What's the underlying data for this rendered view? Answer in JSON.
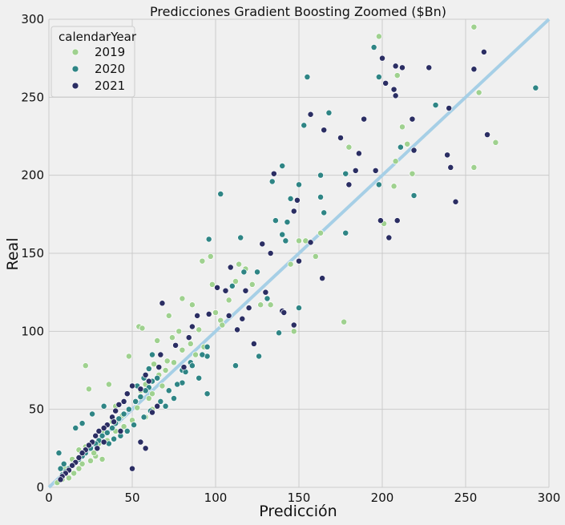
{
  "chart_data": {
    "type": "scatter",
    "title": "Predicciones Gradient Boosting Zoomed ($Bn)",
    "xlabel": "Predicción",
    "ylabel": "Real",
    "xlim": [
      0,
      300
    ],
    "ylim": [
      0,
      300
    ],
    "xticks": [
      0,
      50,
      100,
      150,
      200,
      250,
      300
    ],
    "yticks": [
      0,
      50,
      100,
      150,
      200,
      250,
      300
    ],
    "grid": true,
    "legend": {
      "title": "calendarYear",
      "placement": "top-left",
      "entries": [
        "2019",
        "2020",
        "2021"
      ]
    },
    "colors": {
      "background": "#f0f0f0",
      "grid": "#cbcbcb",
      "reference_line": "#a6cfe6",
      "2019": "#9fd18f",
      "2020": "#2f8585",
      "2021": "#2b2e63"
    },
    "reference_line": {
      "x": [
        0,
        300
      ],
      "y": [
        0,
        300
      ]
    },
    "series": [
      {
        "name": "2019",
        "points": [
          [
            198,
            289
          ],
          [
            255,
            295
          ],
          [
            258,
            253
          ],
          [
            268,
            221
          ],
          [
            255,
            205
          ],
          [
            212,
            231
          ],
          [
            215,
            220
          ],
          [
            209,
            264
          ],
          [
            207,
            193
          ],
          [
            201,
            169
          ],
          [
            180,
            218
          ],
          [
            177,
            106
          ],
          [
            208,
            209
          ],
          [
            232,
            245
          ],
          [
            218,
            201
          ],
          [
            163,
            163
          ],
          [
            150,
            158
          ],
          [
            160,
            148
          ],
          [
            147,
            100
          ],
          [
            154,
            158
          ],
          [
            145,
            143
          ],
          [
            122,
            130
          ],
          [
            118,
            140
          ],
          [
            114,
            143
          ],
          [
            103,
            107
          ],
          [
            104,
            104
          ],
          [
            127,
            117
          ],
          [
            133,
            117
          ],
          [
            98,
            130
          ],
          [
            90,
            101
          ],
          [
            86,
            117
          ],
          [
            92,
            145
          ],
          [
            80,
            121
          ],
          [
            72,
            110
          ],
          [
            78,
            100
          ],
          [
            74,
            96
          ],
          [
            97,
            148
          ],
          [
            65,
            94
          ],
          [
            54,
            103
          ],
          [
            56,
            102
          ],
          [
            48,
            84
          ],
          [
            22,
            78
          ],
          [
            36,
            66
          ],
          [
            40,
            52
          ],
          [
            55,
            62
          ],
          [
            60,
            57
          ],
          [
            62,
            50
          ],
          [
            58,
            45
          ],
          [
            50,
            43
          ],
          [
            45,
            39
          ],
          [
            40,
            36
          ],
          [
            35,
            30
          ],
          [
            30,
            28
          ],
          [
            28,
            20
          ],
          [
            25,
            17
          ],
          [
            20,
            15
          ],
          [
            18,
            12
          ],
          [
            15,
            9
          ],
          [
            12,
            6
          ],
          [
            8,
            5
          ],
          [
            5,
            3
          ],
          [
            10,
            12
          ],
          [
            14,
            18
          ],
          [
            18,
            24
          ],
          [
            22,
            26
          ],
          [
            27,
            22
          ],
          [
            32,
            18
          ],
          [
            33,
            35
          ],
          [
            38,
            42
          ],
          [
            44,
            46
          ],
          [
            48,
            50
          ],
          [
            52,
            55
          ],
          [
            58,
            66
          ],
          [
            62,
            60
          ],
          [
            66,
            72
          ],
          [
            70,
            75
          ],
          [
            75,
            80
          ],
          [
            80,
            88
          ],
          [
            85,
            92
          ],
          [
            88,
            85
          ],
          [
            93,
            90
          ],
          [
            100,
            112
          ],
          [
            108,
            120
          ],
          [
            112,
            132
          ],
          [
            24,
            63
          ],
          [
            41,
            43
          ],
          [
            53,
            51
          ],
          [
            63,
            79
          ],
          [
            68,
            65
          ],
          [
            71,
            81
          ]
        ]
      },
      {
        "name": "2020",
        "points": [
          [
            292,
            256
          ],
          [
            195,
            282
          ],
          [
            198,
            263
          ],
          [
            232,
            245
          ],
          [
            219,
            187
          ],
          [
            211,
            218
          ],
          [
            155,
            263
          ],
          [
            153,
            232
          ],
          [
            168,
            240
          ],
          [
            198,
            194
          ],
          [
            178,
            201
          ],
          [
            178,
            163
          ],
          [
            163,
            200
          ],
          [
            165,
            176
          ],
          [
            163,
            186
          ],
          [
            150,
            194
          ],
          [
            145,
            185
          ],
          [
            140,
            206
          ],
          [
            134,
            196
          ],
          [
            142,
            158
          ],
          [
            143,
            170
          ],
          [
            136,
            171
          ],
          [
            140,
            162
          ],
          [
            150,
            115
          ],
          [
            138,
            99
          ],
          [
            131,
            121
          ],
          [
            125,
            138
          ],
          [
            117,
            138
          ],
          [
            115,
            160
          ],
          [
            110,
            129
          ],
          [
            103,
            188
          ],
          [
            96,
            159
          ],
          [
            112,
            78
          ],
          [
            126,
            84
          ],
          [
            95,
            90
          ],
          [
            95,
            84
          ],
          [
            85,
            80
          ],
          [
            80,
            75
          ],
          [
            90,
            70
          ],
          [
            95,
            60
          ],
          [
            80,
            67
          ],
          [
            75,
            57
          ],
          [
            70,
            52
          ],
          [
            65,
            70
          ],
          [
            62,
            68
          ],
          [
            60,
            64
          ],
          [
            58,
            62
          ],
          [
            55,
            58
          ],
          [
            52,
            55
          ],
          [
            48,
            50
          ],
          [
            45,
            47
          ],
          [
            42,
            44
          ],
          [
            40,
            41
          ],
          [
            38,
            38
          ],
          [
            35,
            35
          ],
          [
            32,
            33
          ],
          [
            30,
            30
          ],
          [
            28,
            28
          ],
          [
            25,
            25
          ],
          [
            22,
            22
          ],
          [
            20,
            20
          ],
          [
            18,
            18
          ],
          [
            15,
            15
          ],
          [
            12,
            12
          ],
          [
            10,
            10
          ],
          [
            8,
            8
          ],
          [
            6,
            22
          ],
          [
            7,
            12
          ],
          [
            9,
            15
          ],
          [
            16,
            38
          ],
          [
            20,
            41
          ],
          [
            26,
            47
          ],
          [
            33,
            52
          ],
          [
            36,
            28
          ],
          [
            39,
            31
          ],
          [
            43,
            33
          ],
          [
            47,
            36
          ],
          [
            51,
            40
          ],
          [
            57,
            45
          ],
          [
            61,
            49
          ],
          [
            67,
            55
          ],
          [
            72,
            62
          ],
          [
            77,
            66
          ],
          [
            82,
            74
          ],
          [
            86,
            78
          ],
          [
            92,
            85
          ],
          [
            62,
            85
          ],
          [
            60,
            76
          ],
          [
            57,
            70
          ],
          [
            53,
            65
          ]
        ]
      },
      {
        "name": "2021",
        "points": [
          [
            200,
            275
          ],
          [
            202,
            259
          ],
          [
            207,
            255
          ],
          [
            208,
            251
          ],
          [
            208,
            270
          ],
          [
            212,
            269
          ],
          [
            228,
            269
          ],
          [
            255,
            268
          ],
          [
            261,
            279
          ],
          [
            263,
            226
          ],
          [
            244,
            183
          ],
          [
            241,
            205
          ],
          [
            239,
            213
          ],
          [
            240,
            243
          ],
          [
            218,
            236
          ],
          [
            219,
            216
          ],
          [
            209,
            171
          ],
          [
            204,
            160
          ],
          [
            199,
            171
          ],
          [
            196,
            203
          ],
          [
            189,
            236
          ],
          [
            184,
            203
          ],
          [
            186,
            214
          ],
          [
            175,
            224
          ],
          [
            180,
            194
          ],
          [
            165,
            229
          ],
          [
            157,
            239
          ],
          [
            164,
            134
          ],
          [
            157,
            157
          ],
          [
            147,
            177
          ],
          [
            149,
            184
          ],
          [
            150,
            145
          ],
          [
            147,
            104
          ],
          [
            140,
            113
          ],
          [
            141,
            112
          ],
          [
            135,
            201
          ],
          [
            128,
            156
          ],
          [
            133,
            150
          ],
          [
            130,
            125
          ],
          [
            118,
            126
          ],
          [
            120,
            115
          ],
          [
            123,
            92
          ],
          [
            116,
            108
          ],
          [
            113,
            101
          ],
          [
            108,
            110
          ],
          [
            109,
            141
          ],
          [
            106,
            126
          ],
          [
            101,
            128
          ],
          [
            96,
            111
          ],
          [
            89,
            110
          ],
          [
            86,
            103
          ],
          [
            84,
            96
          ],
          [
            81,
            77
          ],
          [
            76,
            91
          ],
          [
            68,
            118
          ],
          [
            67,
            85
          ],
          [
            66,
            77
          ],
          [
            60,
            68
          ],
          [
            58,
            72
          ],
          [
            55,
            63
          ],
          [
            50,
            65
          ],
          [
            47,
            60
          ],
          [
            45,
            55
          ],
          [
            42,
            53
          ],
          [
            40,
            49
          ],
          [
            38,
            45
          ],
          [
            35,
            40
          ],
          [
            33,
            38
          ],
          [
            30,
            36
          ],
          [
            28,
            33
          ],
          [
            26,
            29
          ],
          [
            24,
            27
          ],
          [
            22,
            24
          ],
          [
            20,
            22
          ],
          [
            18,
            19
          ],
          [
            16,
            16
          ],
          [
            14,
            14
          ],
          [
            12,
            11
          ],
          [
            10,
            9
          ],
          [
            8,
            7
          ],
          [
            7,
            5
          ],
          [
            50,
            12
          ],
          [
            55,
            29
          ],
          [
            58,
            25
          ],
          [
            62,
            48
          ],
          [
            65,
            52
          ],
          [
            43,
            36
          ],
          [
            39,
            42
          ],
          [
            33,
            29
          ],
          [
            29,
            25
          ]
        ]
      }
    ]
  }
}
